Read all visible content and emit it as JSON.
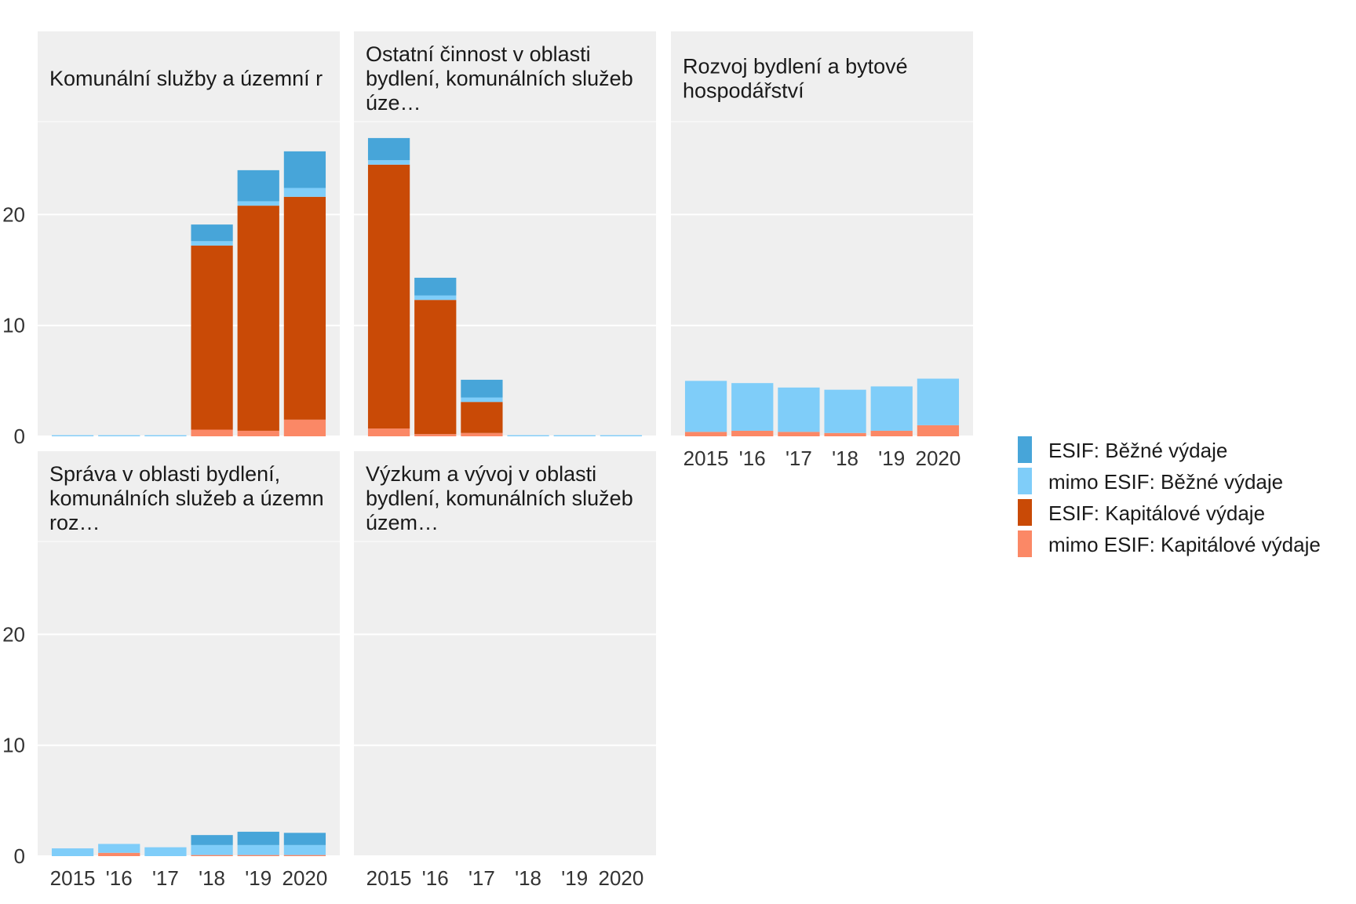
{
  "chart_data": {
    "type": "bar",
    "stacked": true,
    "categories": [
      "2015",
      "'16",
      "'17",
      "'18",
      "'19",
      "2020"
    ],
    "ylim": [
      0,
      30
    ],
    "y_ticks": [
      0,
      10,
      20
    ],
    "grid": true,
    "legend_placement": "right",
    "series": [
      {
        "name": "ESIF: Běžné výdaje",
        "color": "#47a5d9"
      },
      {
        "name": "mimo ESIF: Běžné výdaje",
        "color": "#7fcdf9"
      },
      {
        "name": "ESIF: Kapitálové výdaje",
        "color": "#c94a06"
      },
      {
        "name": "mimo ESIF: Kapitálové výdaje",
        "color": "#fb8866"
      }
    ],
    "stack_order_bottom_up": [
      "mimo ESIF: Kapitálové výdaje",
      "ESIF: Kapitálové výdaje",
      "mimo ESIF: Běžné výdaje",
      "ESIF: Běžné výdaje"
    ],
    "panels": [
      {
        "title_lines": [
          "Komunální služby a územní r"
        ],
        "values": {
          "ESIF: Běžné výdaje": [
            0,
            0,
            0,
            1.5,
            2.8,
            3.3
          ],
          "mimo ESIF: Běžné výdaje": [
            0.1,
            0.1,
            0.1,
            0.4,
            0.4,
            0.8
          ],
          "ESIF: Kapitálové výdaje": [
            0,
            0,
            0,
            16.6,
            20.3,
            20.1
          ],
          "mimo ESIF: Kapitálové výdaje": [
            0,
            0,
            0,
            0.6,
            0.5,
            1.5
          ]
        }
      },
      {
        "title_lines": [
          "Ostatní činnost v oblasti",
          "bydlení, komunálních služeb",
          "úze…"
        ],
        "values": {
          "ESIF: Běžné výdaje": [
            2.0,
            1.6,
            1.6,
            0,
            0,
            0
          ],
          "mimo ESIF: Běžné výdaje": [
            0.4,
            0.4,
            0.4,
            0.1,
            0.1,
            0.1
          ],
          "ESIF: Kapitálové výdaje": [
            23.8,
            12.1,
            2.8,
            0,
            0,
            0
          ],
          "mimo ESIF: Kapitálové výdaje": [
            0.7,
            0.2,
            0.3,
            0,
            0,
            0
          ]
        }
      },
      {
        "title_lines": [
          "Rozvoj bydlení a bytové",
          "hospodářství"
        ],
        "values": {
          "ESIF: Běžné výdaje": [
            0,
            0,
            0,
            0,
            0,
            0
          ],
          "mimo ESIF: Běžné výdaje": [
            4.6,
            4.3,
            4.0,
            3.9,
            4.0,
            4.2
          ],
          "ESIF: Kapitálové výdaje": [
            0,
            0,
            0,
            0,
            0,
            0
          ],
          "mimo ESIF: Kapitálové výdaje": [
            0.4,
            0.5,
            0.4,
            0.3,
            0.5,
            1.0
          ]
        }
      },
      {
        "title_lines": [
          "Správa v oblasti bydlení,",
          "komunálních služeb a územn",
          "roz…"
        ],
        "values": {
          "ESIF: Běžné výdaje": [
            0,
            0,
            0,
            0.9,
            1.2,
            1.1
          ],
          "mimo ESIF: Běžné výdaje": [
            0.7,
            0.8,
            0.8,
            0.9,
            0.9,
            0.9
          ],
          "ESIF: Kapitálové výdaje": [
            0,
            0,
            0,
            0,
            0,
            0
          ],
          "mimo ESIF: Kapitálové výdaje": [
            0,
            0.3,
            0,
            0.1,
            0.1,
            0.1
          ]
        }
      },
      {
        "title_lines": [
          "Výzkum a vývoj v oblasti",
          "bydlení, komunálních služeb",
          "územ…"
        ],
        "values": {
          "ESIF: Běžné výdaje": [
            0,
            0,
            0,
            0,
            0,
            0
          ],
          "mimo ESIF: Běžné výdaje": [
            0,
            0,
            0,
            0,
            0,
            0
          ],
          "ESIF: Kapitálové výdaje": [
            0,
            0,
            0,
            0,
            0,
            0
          ],
          "mimo ESIF: Kapitálové výdaje": [
            0,
            0,
            0,
            0,
            0,
            0
          ]
        }
      }
    ]
  }
}
